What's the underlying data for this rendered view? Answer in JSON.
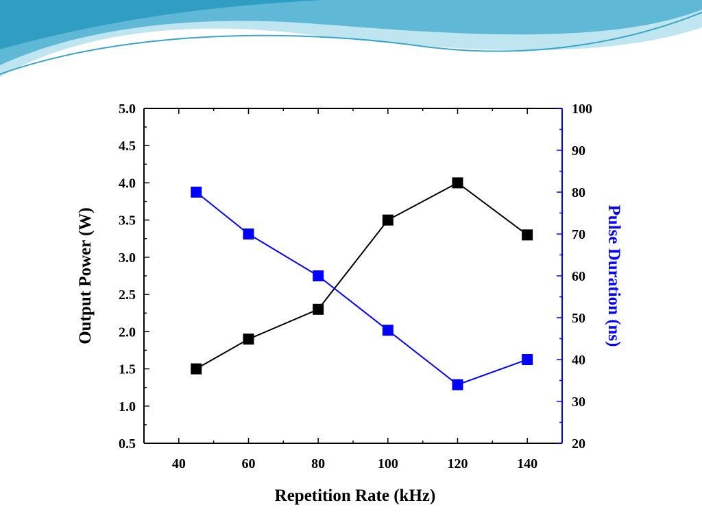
{
  "chart_data": {
    "type": "line",
    "title": "",
    "xlabel": "Repetition Rate (kHz)",
    "ylabel": "Output Power (W)",
    "y2label": "Pulse Duration (ns)",
    "xlim": [
      30,
      150
    ],
    "ylim": [
      0.5,
      5.0
    ],
    "y2lim": [
      20,
      100
    ],
    "x_ticks": [
      40,
      60,
      80,
      100,
      120,
      140
    ],
    "y_ticks": [
      0.5,
      1.0,
      1.5,
      2.0,
      2.5,
      3.0,
      3.5,
      4.0,
      4.5,
      5.0
    ],
    "y2_ticks": [
      20,
      30,
      40,
      50,
      60,
      70,
      80,
      90,
      100
    ],
    "grid": false,
    "series": [
      {
        "axis": "left",
        "color": "#000000",
        "marker": "square",
        "x": [
          45,
          60,
          80,
          100,
          120,
          140
        ],
        "values": [
          1.5,
          1.9,
          2.3,
          3.5,
          4.0,
          3.3
        ]
      },
      {
        "axis": "right",
        "color": "#0000ff",
        "marker": "square",
        "x": [
          45,
          60,
          80,
          100,
          120,
          140
        ],
        "values": [
          80,
          70,
          60,
          47,
          34,
          40
        ]
      }
    ]
  },
  "colors": {
    "left_axis": "#000000",
    "right_axis": "#0000ff",
    "banner_dark": "#3fa9c9",
    "banner_light": "#b7e3ee"
  }
}
